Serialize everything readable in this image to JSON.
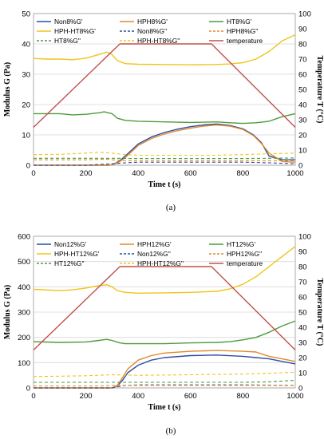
{
  "chart_data": [
    {
      "type": "line",
      "panel_label": "(a)",
      "xlabel": "Time t (s)",
      "ylabel": "Modulus G (Pa)",
      "y2label": "Temperature T (°C)",
      "xlim": [
        0,
        1000
      ],
      "ylim": [
        0,
        50
      ],
      "y2lim": [
        0,
        100
      ],
      "xticks": [
        0,
        200,
        400,
        600,
        800,
        1000
      ],
      "yticks": [
        0,
        10,
        20,
        30,
        40,
        50
      ],
      "y2ticks": [
        0,
        10,
        20,
        30,
        40,
        50,
        60,
        70,
        80,
        90,
        100
      ],
      "grid": "horizontal",
      "legend_position": "top",
      "series": [
        {
          "name": "Non8%G'",
          "color": "#2e4ea3",
          "dash": "solid",
          "x": [
            0,
            250,
            290,
            300,
            310,
            330,
            350,
            400,
            450,
            500,
            550,
            600,
            650,
            700,
            750,
            800,
            840,
            870,
            900,
            950,
            1000
          ],
          "y": [
            0,
            0,
            0,
            0.2,
            0.5,
            1.5,
            3,
            7,
            9.3,
            10.8,
            11.9,
            12.7,
            13.3,
            13.6,
            13.1,
            12,
            10,
            7.5,
            3,
            1.8,
            1.8
          ]
        },
        {
          "name": "HPH8%G'",
          "color": "#e08a2e",
          "dash": "solid",
          "x": [
            0,
            250,
            290,
            300,
            310,
            330,
            350,
            400,
            450,
            500,
            550,
            600,
            650,
            700,
            750,
            800,
            840,
            870,
            900,
            950,
            1000
          ],
          "y": [
            0,
            0,
            0,
            0.2,
            0.4,
            1.2,
            2.5,
            6.5,
            8.8,
            10.3,
            11.4,
            12.2,
            12.9,
            13.3,
            12.9,
            11.8,
            9.8,
            7.2,
            4,
            1.2,
            1
          ]
        },
        {
          "name": "HT8%G'",
          "color": "#4e9a3a",
          "dash": "solid",
          "x": [
            0,
            50,
            100,
            150,
            200,
            250,
            270,
            300,
            320,
            350,
            400,
            500,
            600,
            700,
            750,
            800,
            850,
            900,
            950,
            1000
          ],
          "y": [
            17,
            17,
            17,
            16.6,
            16.8,
            17.3,
            17.6,
            17,
            15.5,
            14.8,
            14.5,
            14.3,
            14.1,
            14.3,
            14,
            13.8,
            14,
            14.5,
            16,
            17
          ]
        },
        {
          "name": "HPH-HT8%G'",
          "color": "#f0c419",
          "dash": "solid",
          "x": [
            0,
            50,
            100,
            150,
            200,
            250,
            280,
            300,
            320,
            350,
            400,
            500,
            600,
            700,
            750,
            800,
            850,
            900,
            950,
            1000
          ],
          "y": [
            35.2,
            35,
            35,
            34.8,
            35.3,
            36.5,
            37.3,
            36.5,
            34.5,
            33.5,
            33.3,
            33.2,
            33.1,
            33.2,
            33.4,
            33.8,
            35,
            37.5,
            41,
            43
          ]
        },
        {
          "name": "Non8%G''",
          "color": "#2e4ea3",
          "dash": "dashed",
          "x": [
            0,
            200,
            300,
            350,
            400,
            500,
            600,
            700,
            800,
            900,
            1000
          ],
          "y": [
            0,
            0,
            0.5,
            0.8,
            1,
            1,
            1,
            1,
            1,
            0.8,
            0.5
          ]
        },
        {
          "name": "HPH8%G''",
          "color": "#e08a2e",
          "dash": "dashed",
          "x": [
            0,
            200,
            280,
            300,
            350,
            400,
            500,
            600,
            700,
            800,
            900,
            1000
          ],
          "y": [
            1.8,
            1.8,
            2,
            1.8,
            1.5,
            1.5,
            1.5,
            1.5,
            1.5,
            1.5,
            1.5,
            1.5
          ]
        },
        {
          "name": "HT8%G''",
          "color": "#4e9a3a",
          "dash": "dashed",
          "x": [
            0,
            200,
            300,
            400,
            500,
            600,
            700,
            800,
            900,
            1000
          ],
          "y": [
            2.3,
            2.3,
            2.3,
            2.2,
            2.2,
            2.2,
            2.2,
            2.2,
            2.3,
            2.4
          ]
        },
        {
          "name": "HPH-HT8%G''",
          "color": "#f0c419",
          "dash": "dashed",
          "x": [
            0,
            100,
            200,
            250,
            300,
            350,
            400,
            500,
            600,
            700,
            800,
            900,
            1000
          ],
          "y": [
            3.5,
            3.6,
            4,
            4.3,
            4,
            3.5,
            3.3,
            3.3,
            3.3,
            3.3,
            3.5,
            3.8,
            4
          ]
        },
        {
          "name": "temperature",
          "color": "#c0504d",
          "dash": "solid",
          "axis": "right",
          "x": [
            0,
            330,
            680,
            1000
          ],
          "y": [
            25,
            80,
            80,
            25
          ]
        }
      ]
    },
    {
      "type": "line",
      "panel_label": "(b)",
      "xlabel": "Time t (s)",
      "ylabel": "Modulus G (Pa)",
      "y2label": "Temperature T (°C)",
      "xlim": [
        0,
        1000
      ],
      "ylim": [
        0,
        600
      ],
      "y2lim": [
        0,
        100
      ],
      "xticks": [
        0,
        200,
        400,
        600,
        800,
        1000
      ],
      "yticks": [
        0,
        100,
        200,
        300,
        400,
        500,
        600
      ],
      "y2ticks": [
        0,
        10,
        20,
        30,
        40,
        50,
        60,
        70,
        80,
        90,
        100
      ],
      "grid": "horizontal",
      "legend_position": "top",
      "series": [
        {
          "name": "Non12%G'",
          "color": "#2e4ea3",
          "dash": "solid",
          "x": [
            0,
            300,
            320,
            340,
            360,
            400,
            450,
            500,
            600,
            700,
            800,
            850,
            900,
            950,
            1000
          ],
          "y": [
            0,
            0,
            8,
            30,
            60,
            90,
            110,
            120,
            128,
            130,
            125,
            120,
            115,
            105,
            95
          ]
        },
        {
          "name": "HPH12%G'",
          "color": "#e08a2e",
          "dash": "solid",
          "x": [
            0,
            300,
            320,
            340,
            360,
            400,
            450,
            500,
            600,
            700,
            800,
            850,
            870,
            900,
            950,
            1000
          ],
          "y": [
            0,
            0,
            10,
            40,
            75,
            110,
            128,
            138,
            145,
            148,
            145,
            142,
            135,
            125,
            115,
            105
          ]
        },
        {
          "name": "HT12%G'",
          "color": "#4e9a3a",
          "dash": "solid",
          "x": [
            0,
            100,
            200,
            250,
            280,
            300,
            330,
            350,
            400,
            500,
            600,
            700,
            750,
            800,
            850,
            900,
            950,
            1000
          ],
          "y": [
            183,
            180,
            182,
            188,
            192,
            188,
            178,
            175,
            175,
            175,
            178,
            180,
            183,
            190,
            200,
            220,
            245,
            265
          ]
        },
        {
          "name": "HPH-HT12%G'",
          "color": "#f0c419",
          "dash": "solid",
          "x": [
            0,
            100,
            150,
            200,
            250,
            280,
            300,
            320,
            350,
            400,
            500,
            600,
            700,
            750,
            800,
            850,
            900,
            950,
            1000
          ],
          "y": [
            390,
            385,
            388,
            395,
            405,
            408,
            400,
            385,
            378,
            375,
            376,
            378,
            382,
            392,
            410,
            440,
            480,
            520,
            560
          ]
        },
        {
          "name": "Non12%G''",
          "color": "#2e4ea3",
          "dash": "dashed",
          "x": [
            0,
            300,
            350,
            400,
            600,
            800,
            1000
          ],
          "y": [
            0,
            0,
            10,
            12,
            12,
            12,
            10
          ]
        },
        {
          "name": "HPH12%G''",
          "color": "#e08a2e",
          "dash": "dashed",
          "x": [
            0,
            250,
            300,
            350,
            400,
            600,
            800,
            1000
          ],
          "y": [
            8,
            8,
            10,
            10,
            10,
            10,
            10,
            10
          ]
        },
        {
          "name": "HT12%G''",
          "color": "#4e9a3a",
          "dash": "dashed",
          "x": [
            0,
            200,
            300,
            400,
            600,
            800,
            900,
            1000
          ],
          "y": [
            22,
            22,
            22,
            22,
            22,
            22,
            24,
            30
          ]
        },
        {
          "name": "HPH-HT12%G''",
          "color": "#f0c419",
          "dash": "dashed",
          "x": [
            0,
            200,
            300,
            400,
            600,
            800,
            900,
            1000
          ],
          "y": [
            45,
            48,
            52,
            50,
            52,
            55,
            58,
            62
          ]
        },
        {
          "name": "temperature",
          "color": "#c0504d",
          "dash": "solid",
          "axis": "right",
          "x": [
            0,
            330,
            680,
            1000
          ],
          "y": [
            25,
            80,
            80,
            25
          ]
        }
      ]
    }
  ]
}
